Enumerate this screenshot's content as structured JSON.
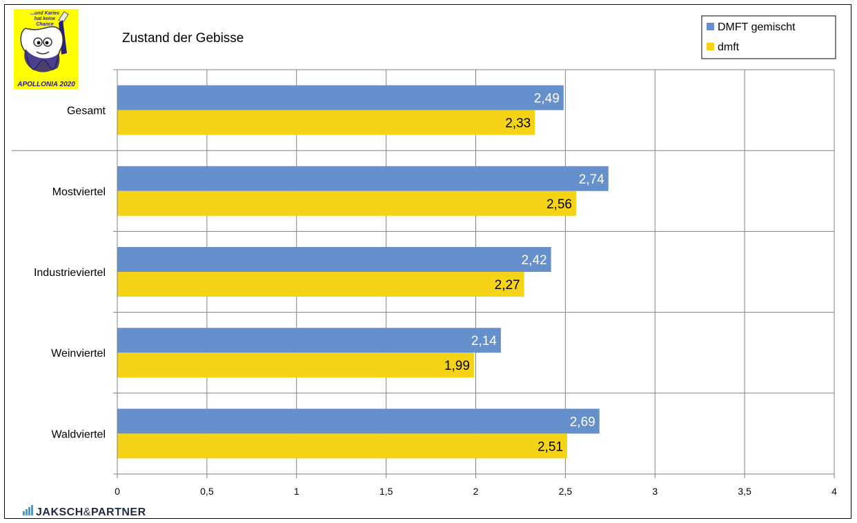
{
  "logo": {
    "slogan_lines": [
      "...und Karies",
      "hat keine",
      "Chance"
    ],
    "caption": "APOLLONIA 2020",
    "icon": "tooth-mascot-icon"
  },
  "brand": {
    "name_part1": "JAKSCH",
    "amp": "&",
    "name_part2": "PARTNER",
    "icon": "bar-chart-icon"
  },
  "colors": {
    "series1": "#6590cc",
    "series2": "#f5d418",
    "grid": "#808080"
  },
  "chart_data": {
    "type": "bar",
    "orientation": "horizontal",
    "title": "Zustand der Gebisse",
    "categories": [
      "Gesamt",
      "Mostviertel",
      "Industrieviertel",
      "Weinviertel",
      "Waldviertel"
    ],
    "series": [
      {
        "name": "DMFT gemischt",
        "values": [
          2.49,
          2.74,
          2.42,
          2.14,
          2.69
        ],
        "labels": [
          "2,49",
          "2,74",
          "2,42",
          "2,14",
          "2,69"
        ],
        "color": "#6590cc",
        "label_color": "#ffffff"
      },
      {
        "name": "dmft",
        "values": [
          2.33,
          2.56,
          2.27,
          1.99,
          2.51
        ],
        "labels": [
          "2,33",
          "2,56",
          "2,27",
          "1,99",
          "2,51"
        ],
        "color": "#f5d418",
        "label_color": "#000000"
      }
    ],
    "xlim": [
      0,
      4
    ],
    "xticks": [
      0,
      0.5,
      1,
      1.5,
      2,
      2.5,
      3,
      3.5,
      4
    ],
    "xtick_labels": [
      "0",
      "0,5",
      "1",
      "1,5",
      "2",
      "2,5",
      "3",
      "3,5",
      "4"
    ],
    "grid": true,
    "legend": "top-right"
  }
}
